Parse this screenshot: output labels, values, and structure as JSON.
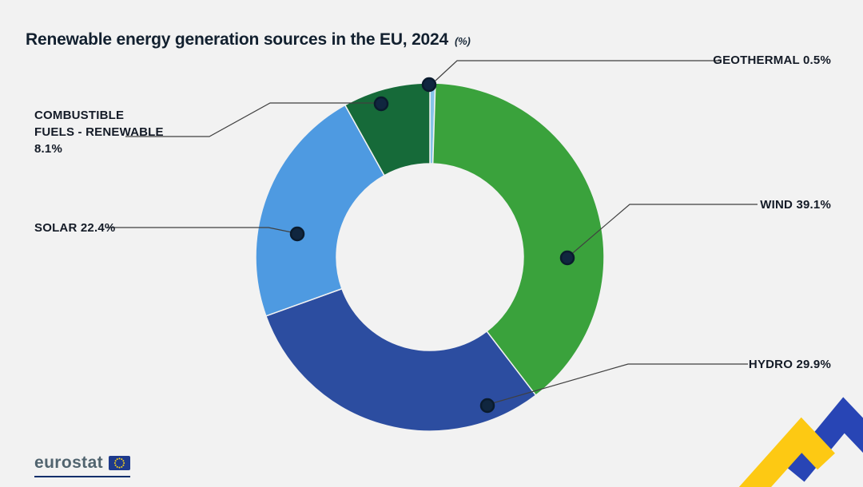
{
  "title": {
    "text": "Renewable energy generation sources in the EU, 2024",
    "unit_note": "(%)"
  },
  "chart_data": {
    "type": "pie",
    "donut": true,
    "title": "Renewable energy generation sources in the EU, 2024",
    "unit": "%",
    "categories": [
      "Geothermal",
      "Wind",
      "Hydro",
      "Solar",
      "Combustible fuels - renewable"
    ],
    "values": [
      0.5,
      39.1,
      29.9,
      22.4,
      8.1
    ],
    "colors": [
      "#85c4e8",
      "#3aa23c",
      "#2c4da0",
      "#4e9ae1",
      "#166a39"
    ],
    "start_angle_deg": -90,
    "direction": "clockwise",
    "legend_position": "callout-labels"
  },
  "labels": {
    "geothermal": {
      "name": "GEOTHERMAL",
      "value": "0.5%"
    },
    "wind": {
      "name": "WIND",
      "value": "39.1%"
    },
    "hydro": {
      "name": "HYDRO",
      "value": "29.9%"
    },
    "solar": {
      "name": "SOLAR",
      "value": "22.4%"
    },
    "combustible": {
      "name": "COMBUSTIBLE FUELS - RENEWABLE",
      "value": "8.1%"
    }
  },
  "footer": {
    "brand": "eurostat"
  },
  "colors": {
    "background": "#f2f2f2",
    "title_text": "#12202f",
    "leader_line": "#404040",
    "marker_dot": "#10263f",
    "ribbon_yellow": "#fdc913",
    "ribbon_blue": "#2845b5",
    "flag_blue": "#1e3a8c",
    "flag_stars": "#ffd617"
  }
}
